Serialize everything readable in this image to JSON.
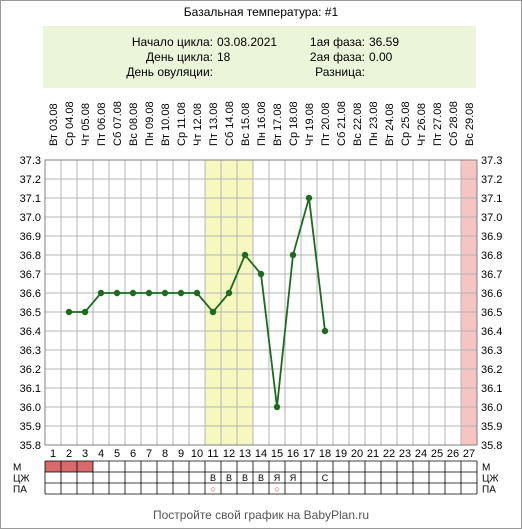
{
  "title": "Базальная температура: #1",
  "info": {
    "cycle_start_label": "Начало цикла:",
    "cycle_start": "03.08.2021",
    "cycle_day_label": "День цикла:",
    "cycle_day": "18",
    "ovulation_day_label": "День овуляции:",
    "ovulation_day": "",
    "phase1_label": "1ая фаза:",
    "phase1": "36.59",
    "phase2_label": "2ая фаза:",
    "phase2": "0.00",
    "difference_label": "Разница:",
    "difference": ""
  },
  "footer": "Постройте свой график на BabyPlan.ru",
  "colors": {
    "line": "#1e6b1e",
    "fertile_band": "#f7f7c0",
    "next_cycle_band": "#f7c4c4",
    "menstruation": "#d86a6a",
    "grid": "#b5b5b5"
  },
  "chart_data": {
    "type": "line",
    "dates": [
      "Вт 03.08",
      "Ср 04.08",
      "Чт 05.08",
      "Пт 06.08",
      "Сб 07.08",
      "Вс 08.08",
      "Пн 09.08",
      "Вт 10.08",
      "Ср 11.08",
      "Чт 12.08",
      "Пт 13.08",
      "Сб 14.08",
      "Вс 15.08",
      "Пн 16.08",
      "Вт 17.08",
      "Ср 18.08",
      "Чт 19.08",
      "Пт 20.08",
      "Сб 21.08",
      "Вс 22.08",
      "Пн 23.08",
      "Вт 24.08",
      "Ср 25.08",
      "Чт 26.08",
      "Пт 27.08",
      "Сб 28.08",
      "Вс 29.08"
    ],
    "x": [
      1,
      2,
      3,
      4,
      5,
      6,
      7,
      8,
      9,
      10,
      11,
      12,
      13,
      14,
      15,
      16,
      17,
      18,
      19,
      20,
      21,
      22,
      23,
      24,
      25,
      26,
      27
    ],
    "y_ticks": [
      "37.3",
      "37.2",
      "37.1",
      "37.0",
      "36.9",
      "36.8",
      "36.7",
      "36.6",
      "36.5",
      "36.4",
      "36.3",
      "36.2",
      "36.1",
      "36.0",
      "35.9",
      "35.8"
    ],
    "ylim": [
      35.8,
      37.3
    ],
    "temperatures": [
      {
        "day": 2,
        "value": 36.5
      },
      {
        "day": 3,
        "value": 36.5
      },
      {
        "day": 4,
        "value": 36.6
      },
      {
        "day": 5,
        "value": 36.6
      },
      {
        "day": 6,
        "value": 36.6
      },
      {
        "day": 7,
        "value": 36.6
      },
      {
        "day": 8,
        "value": 36.6
      },
      {
        "day": 9,
        "value": 36.6
      },
      {
        "day": 10,
        "value": 36.6
      },
      {
        "day": 11,
        "value": 36.5
      },
      {
        "day": 12,
        "value": 36.6
      },
      {
        "day": 13,
        "value": 36.8
      },
      {
        "day": 14,
        "value": 36.7
      },
      {
        "day": 15,
        "value": 36.0
      },
      {
        "day": 16,
        "value": 36.8
      },
      {
        "day": 17,
        "value": 37.1
      },
      {
        "day": 18,
        "value": 36.4
      }
    ],
    "fertile_days": [
      11,
      13
    ],
    "next_cycle_day": 27,
    "grid": true,
    "rows": [
      {
        "label": "М",
        "menstruation_days": [
          1,
          2,
          3
        ],
        "marks": []
      },
      {
        "label": "ЦЖ",
        "marks": [
          {
            "day": 11,
            "text": "В"
          },
          {
            "day": 12,
            "text": "В"
          },
          {
            "day": 13,
            "text": "В"
          },
          {
            "day": 14,
            "text": "В"
          },
          {
            "day": 15,
            "text": "Я"
          },
          {
            "day": 16,
            "text": "Я"
          },
          {
            "day": 18,
            "text": "С"
          }
        ]
      },
      {
        "label": "ПА",
        "marks": [
          {
            "day": 11,
            "text": "○"
          },
          {
            "day": 15,
            "text": "○"
          }
        ]
      }
    ]
  }
}
